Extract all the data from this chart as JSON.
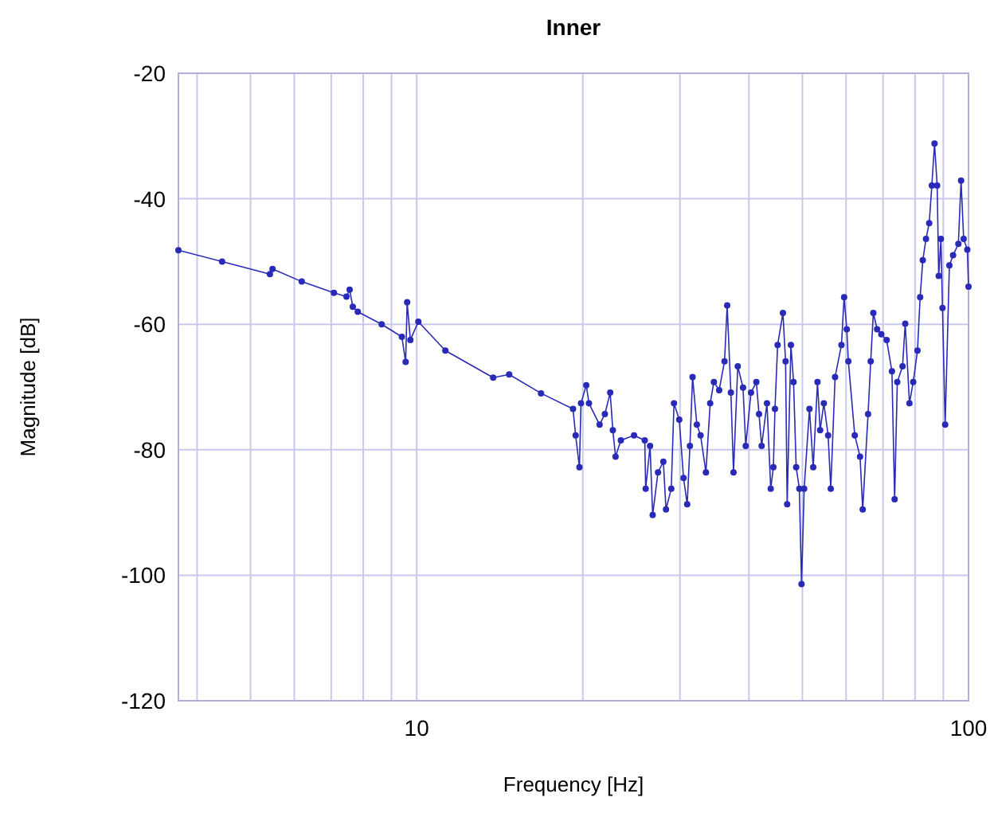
{
  "chart_data": {
    "type": "line",
    "title": "Inner",
    "xlabel": "Frequency [Hz]",
    "ylabel": "Magnitude [dB]",
    "log": "x",
    "grid": true,
    "marker": "circle",
    "line_style": "solid",
    "xlim": [
      3.7,
      100
    ],
    "ylim": [
      -120,
      -20
    ],
    "xticks": [
      {
        "value": 4,
        "label": null
      },
      {
        "value": 5,
        "label": null
      },
      {
        "value": 6,
        "label": null
      },
      {
        "value": 7,
        "label": null
      },
      {
        "value": 8,
        "label": null
      },
      {
        "value": 9,
        "label": null
      },
      10,
      {
        "value": 20,
        "label": null
      },
      {
        "value": 30,
        "label": null
      },
      {
        "value": 40,
        "label": null
      },
      {
        "value": 50,
        "label": null
      },
      {
        "value": 60,
        "label": null
      },
      {
        "value": 70,
        "label": null
      },
      {
        "value": 80,
        "label": null
      },
      {
        "value": 90,
        "label": null
      },
      100
    ],
    "yticks": [
      -120,
      -100,
      -80,
      -60,
      -40,
      -20
    ],
    "x": [
      3.7,
      4.44,
      5.42,
      5.48,
      6.19,
      7.08,
      7.46,
      7.56,
      7.66,
      7.82,
      8.64,
      9.4,
      9.55,
      9.61,
      9.74,
      10.07,
      11.27,
      13.76,
      14.71,
      16.8,
      19.2,
      19.41,
      19.72,
      19.85,
      20.29,
      20.52,
      21.45,
      21.93,
      22.42,
      22.67,
      22.93,
      23.44,
      24.77,
      25.9,
      26.0,
      26.48,
      26.77,
      27.37,
      27.99,
      28.3,
      28.93,
      29.26,
      29.91,
      30.45,
      30.92,
      31.27,
      31.62,
      32.19,
      32.69,
      33.43,
      34.03,
      34.56,
      35.33,
      36.13,
      36.53,
      37.1,
      37.51,
      38.18,
      39.03,
      39.47,
      40.35,
      41.26,
      41.72,
      42.18,
      43.13,
      43.81,
      44.3,
      44.59,
      45.09,
      46.1,
      46.61,
      46.92,
      47.66,
      48.19,
      48.72,
      49.37,
      49.82,
      50.37,
      51.5,
      52.31,
      53.25,
      53.84,
      54.68,
      55.67,
      56.28,
      57.31,
      58.85,
      59.51,
      60.17,
      60.57,
      62.21,
      63.6,
      64.31,
      65.76,
      66.49,
      67.23,
      68.29,
      69.5,
      71.06,
      72.65,
      73.47,
      74.29,
      75.94,
      76.79,
      78.16,
      79.4,
      80.82,
      81.72,
      82.63,
      83.74,
      84.87,
      85.81,
      86.78,
      87.74,
      88.31,
      89.12,
      89.71,
      90.72,
      92.33,
      93.77,
      95.85,
      96.94,
      98.0,
      99.5,
      100
    ],
    "series": [
      {
        "color": "#2a2ab8",
        "values": [
          -48.2,
          -50.0,
          -52.0,
          -51.2,
          -53.2,
          -55.0,
          -55.6,
          -54.5,
          -57.2,
          -58.0,
          -60.0,
          -62.0,
          -66.0,
          -56.5,
          -62.5,
          -59.6,
          -64.2,
          -68.5,
          -68.0,
          -71.0,
          -73.5,
          -77.7,
          -82.8,
          -72.6,
          -69.7,
          -72.6,
          -76.0,
          -74.3,
          -70.9,
          -76.9,
          -81.1,
          -78.5,
          -77.7,
          -78.5,
          -86.2,
          -79.4,
          -90.4,
          -83.6,
          -81.9,
          -89.5,
          -86.2,
          -72.6,
          -75.2,
          -84.5,
          -88.7,
          -79.4,
          -68.4,
          -76.0,
          -77.7,
          -83.6,
          -72.6,
          -69.2,
          -70.5,
          -65.9,
          -57.0,
          -70.9,
          -83.6,
          -66.7,
          -70.1,
          -79.4,
          -70.9,
          -69.2,
          -74.3,
          -79.4,
          -72.6,
          -86.2,
          -82.8,
          -73.5,
          -63.3,
          -58.2,
          -65.9,
          -88.7,
          -63.3,
          -69.2,
          -82.8,
          -86.2,
          -101.4,
          -86.2,
          -73.5,
          -82.8,
          -69.2,
          -76.9,
          -72.6,
          -77.7,
          -86.2,
          -68.4,
          -63.3,
          -55.7,
          -60.8,
          -65.9,
          -77.7,
          -81.1,
          -89.5,
          -74.3,
          -65.9,
          -58.2,
          -60.8,
          -61.6,
          -62.5,
          -67.5,
          -87.9,
          -69.2,
          -66.7,
          -59.9,
          -72.6,
          -69.2,
          -64.2,
          -55.7,
          -49.8,
          -46.4,
          -43.9,
          -37.9,
          -31.2,
          -37.9,
          -52.3,
          -46.4,
          -57.4,
          -76.0,
          -50.6,
          -49.0,
          -47.2,
          -37.1,
          -46.4,
          -48.1,
          -54.0
        ]
      }
    ]
  }
}
